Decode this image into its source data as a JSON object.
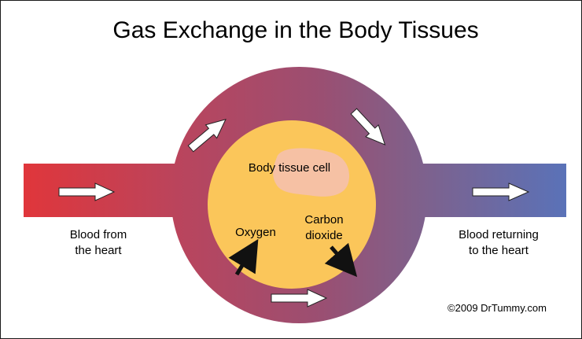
{
  "title": "Gas Exchange in the Body Tissues",
  "labels": {
    "cell": "Body tissue cell",
    "oxygen": "Oxygen",
    "carbon_dioxide_line1": "Carbon",
    "carbon_dioxide_line2": "dioxide",
    "blood_from_line1": "Blood from",
    "blood_from_line2": "the heart",
    "blood_returning_line1": "Blood returning",
    "blood_returning_line2": "to the heart",
    "copyright": "©2009 DrTummy.com"
  },
  "colors": {
    "arterial_red": "#e0363b",
    "venous_blue": "#5a72b8",
    "cell_yellow": "#fbc65a",
    "nucleus_peach": "#f6c1a4"
  }
}
